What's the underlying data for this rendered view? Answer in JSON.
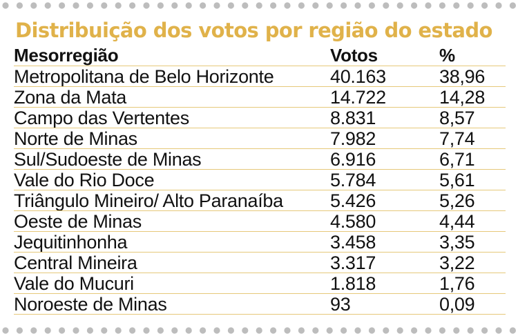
{
  "title": "Distribuição dos votos por região do estado",
  "table": {
    "headers": {
      "region": "Mesorregião",
      "votes": "Votos",
      "percent": "%"
    },
    "rows": [
      {
        "region": "Metropolitana de Belo Horizonte",
        "votes": "40.163",
        "percent": "38,96"
      },
      {
        "region": "Zona da Mata",
        "votes": "14.722",
        "percent": "14,28"
      },
      {
        "region": "Campo das Vertentes",
        "votes": "8.831",
        "percent": "8,57"
      },
      {
        "region": "Norte de Minas",
        "votes": "7.982",
        "percent": "7,74"
      },
      {
        "region": "Sul/Sudoeste de Minas",
        "votes": "6.916",
        "percent": "6,71"
      },
      {
        "region": "Vale do Rio Doce",
        "votes": "5.784",
        "percent": "5,61"
      },
      {
        "region": "Triângulo Mineiro/ Alto Paranaíba",
        "votes": "5.426",
        "percent": "5,26"
      },
      {
        "region": "Oeste de Minas",
        "votes": "4.580",
        "percent": "4,44"
      },
      {
        "region": "Jequitinhonha",
        "votes": "3.458",
        "percent": "3,35"
      },
      {
        "region": "Central Mineira",
        "votes": "3.317",
        "percent": "3,22"
      },
      {
        "region": "Vale do Mucuri",
        "votes": "1.818",
        "percent": "1,76"
      },
      {
        "region": "Noroeste de Minas",
        "votes": "93",
        "percent": "0,09"
      }
    ]
  },
  "colors": {
    "title": "#e0b24a",
    "rule": "#e6c879",
    "dots": "#bdbdbd"
  }
}
